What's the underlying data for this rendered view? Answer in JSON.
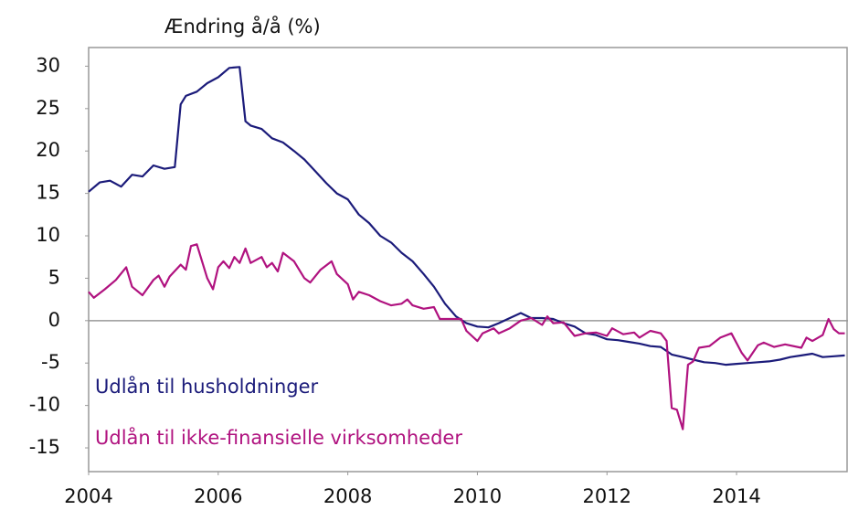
{
  "chart_data": {
    "type": "line",
    "ylabel": "Ændring å/å (%)",
    "xlim": [
      2004,
      2015.72
    ],
    "ylim": [
      -17.8,
      32.2
    ],
    "xticks": [
      2004,
      2006,
      2008,
      2010,
      2012,
      2014
    ],
    "yticks": [
      30,
      25,
      20,
      15,
      10,
      5,
      0,
      -5,
      -10,
      -15
    ],
    "zero_line": true,
    "series": [
      {
        "name": "Udlån til husholdninger",
        "color": "#1b1b7a",
        "x": [
          2004.0,
          2004.17,
          2004.33,
          2004.5,
          2004.67,
          2004.83,
          2005.0,
          2005.17,
          2005.33,
          2005.42,
          2005.5,
          2005.67,
          2005.83,
          2006.0,
          2006.17,
          2006.33,
          2006.42,
          2006.5,
          2006.67,
          2006.83,
          2007.0,
          2007.17,
          2007.33,
          2007.5,
          2007.67,
          2007.83,
          2008.0,
          2008.17,
          2008.33,
          2008.5,
          2008.67,
          2008.83,
          2009.0,
          2009.17,
          2009.33,
          2009.5,
          2009.67,
          2009.83,
          2010.0,
          2010.17,
          2010.33,
          2010.5,
          2010.67,
          2010.83,
          2011.0,
          2011.17,
          2011.33,
          2011.5,
          2011.67,
          2011.83,
          2012.0,
          2012.17,
          2012.33,
          2012.5,
          2012.67,
          2012.83,
          2013.0,
          2013.17,
          2013.33,
          2013.5,
          2013.67,
          2013.83,
          2014.0,
          2014.17,
          2014.33,
          2014.5,
          2014.67,
          2014.83,
          2015.0,
          2015.17,
          2015.33,
          2015.5,
          2015.67
        ],
        "values": [
          15.2,
          16.3,
          16.5,
          15.8,
          17.2,
          17.0,
          18.3,
          17.9,
          18.1,
          25.5,
          26.5,
          27.0,
          28.0,
          28.7,
          29.8,
          29.9,
          23.5,
          23.0,
          22.6,
          21.5,
          21.0,
          20.0,
          19.0,
          17.6,
          16.2,
          15.0,
          14.3,
          12.5,
          11.5,
          10.0,
          9.2,
          8.0,
          7.0,
          5.5,
          4.0,
          2.0,
          0.5,
          -0.3,
          -0.7,
          -0.8,
          -0.3,
          0.3,
          0.9,
          0.3,
          0.3,
          0.2,
          -0.3,
          -0.7,
          -1.5,
          -1.7,
          -2.2,
          -2.3,
          -2.5,
          -2.7,
          -3.0,
          -3.1,
          -4.0,
          -4.3,
          -4.6,
          -4.9,
          -5.0,
          -5.2,
          -5.1,
          -5.0,
          -4.9,
          -4.8,
          -4.6,
          -4.3,
          -4.1,
          -3.9,
          -4.3,
          -4.2,
          -4.1
        ]
      },
      {
        "name": "Udlån til ikke-finansielle virksomheder",
        "color": "#b0127f",
        "x": [
          2004.0,
          2004.08,
          2004.25,
          2004.42,
          2004.58,
          2004.67,
          2004.83,
          2005.0,
          2005.08,
          2005.17,
          2005.25,
          2005.42,
          2005.5,
          2005.58,
          2005.67,
          2005.83,
          2005.92,
          2006.0,
          2006.08,
          2006.17,
          2006.25,
          2006.33,
          2006.42,
          2006.5,
          2006.67,
          2006.75,
          2006.83,
          2006.92,
          2007.0,
          2007.17,
          2007.33,
          2007.42,
          2007.58,
          2007.75,
          2007.83,
          2008.0,
          2008.08,
          2008.17,
          2008.33,
          2008.5,
          2008.67,
          2008.83,
          2008.92,
          2009.0,
          2009.17,
          2009.33,
          2009.42,
          2009.58,
          2009.75,
          2009.83,
          2010.0,
          2010.08,
          2010.25,
          2010.33,
          2010.5,
          2010.67,
          2010.83,
          2011.0,
          2011.08,
          2011.17,
          2011.33,
          2011.5,
          2011.67,
          2011.83,
          2012.0,
          2012.08,
          2012.25,
          2012.42,
          2012.5,
          2012.67,
          2012.83,
          2012.92,
          2013.0,
          2013.08,
          2013.17,
          2013.25,
          2013.33,
          2013.42,
          2013.58,
          2013.75,
          2013.92,
          2014.08,
          2014.17,
          2014.33,
          2014.42,
          2014.58,
          2014.75,
          2015.0,
          2015.08,
          2015.17,
          2015.33,
          2015.42,
          2015.5,
          2015.58,
          2015.67
        ],
        "values": [
          3.4,
          2.7,
          3.7,
          4.8,
          6.3,
          4.0,
          3.0,
          4.8,
          5.3,
          4.0,
          5.2,
          6.6,
          6.0,
          8.8,
          9.0,
          5.0,
          3.7,
          6.3,
          7.0,
          6.2,
          7.5,
          6.8,
          8.5,
          6.8,
          7.5,
          6.3,
          6.8,
          5.8,
          8.0,
          7.0,
          5.0,
          4.5,
          6.0,
          7.0,
          5.5,
          4.3,
          2.5,
          3.4,
          3.0,
          2.3,
          1.8,
          2.0,
          2.5,
          1.8,
          1.4,
          1.6,
          0.2,
          0.2,
          0.2,
          -1.2,
          -2.4,
          -1.5,
          -0.9,
          -1.5,
          -0.9,
          0.0,
          0.3,
          -0.5,
          0.5,
          -0.3,
          -0.2,
          -1.8,
          -1.5,
          -1.4,
          -1.8,
          -0.9,
          -1.6,
          -1.4,
          -2.0,
          -1.2,
          -1.5,
          -2.4,
          -10.3,
          -10.5,
          -12.8,
          -5.2,
          -4.8,
          -3.2,
          -3.0,
          -2.0,
          -1.5,
          -3.8,
          -4.7,
          -2.9,
          -2.6,
          -3.1,
          -2.8,
          -3.2,
          -2.0,
          -2.4,
          -1.7,
          0.2,
          -1.0,
          -1.5,
          -1.5
        ]
      }
    ]
  }
}
